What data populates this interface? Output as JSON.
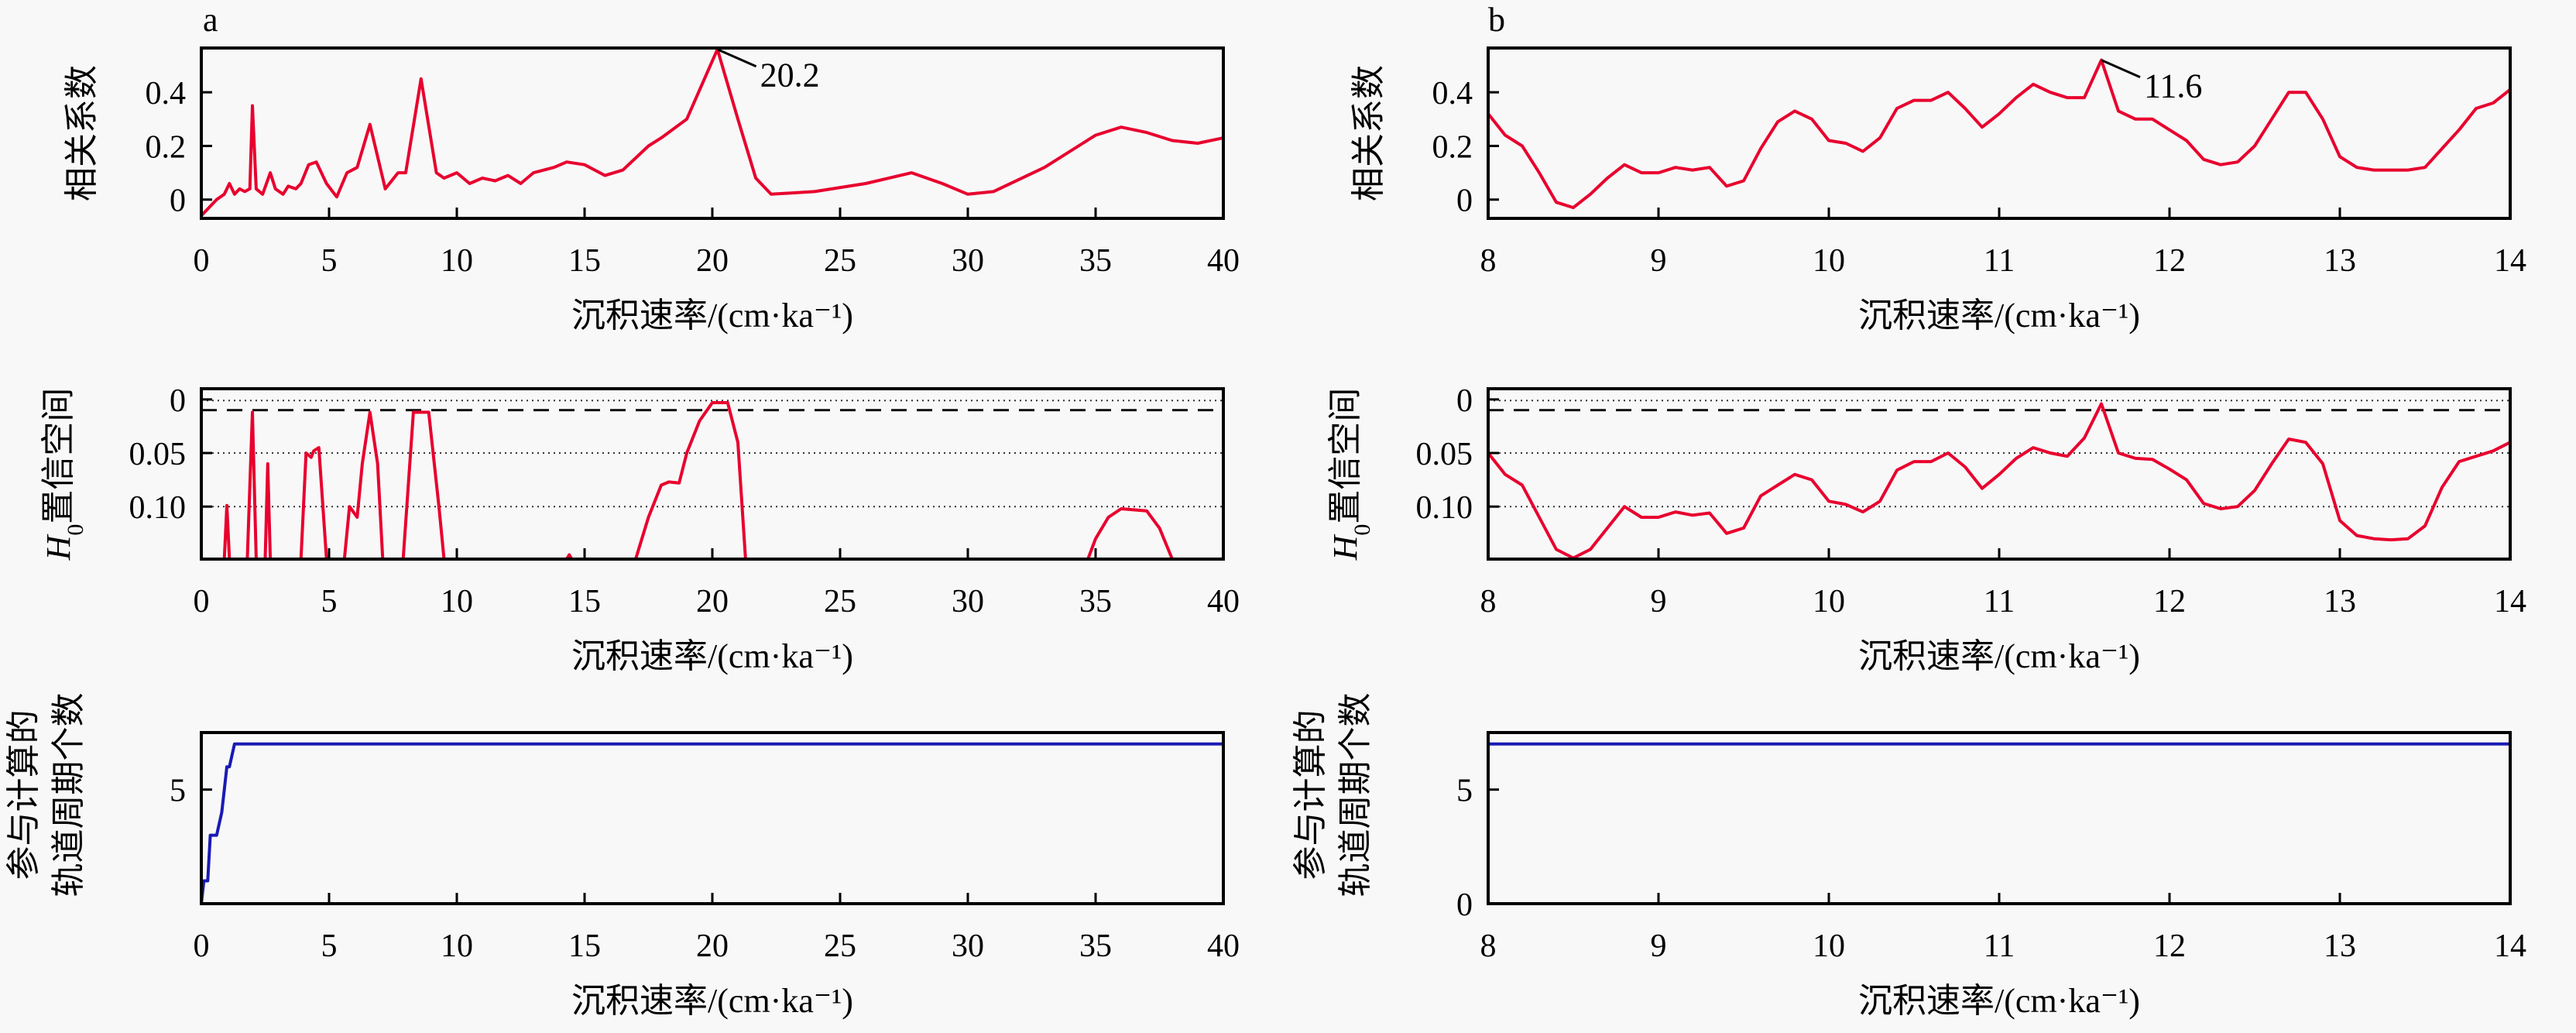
{
  "figure": {
    "panels": [
      {
        "letter": "a"
      },
      {
        "letter": "b"
      }
    ]
  },
  "chart_data": [
    {
      "id": "a-corr",
      "panel": "a",
      "type": "line",
      "title": "",
      "xlabel": "沉积速率/(cm·ka⁻¹)",
      "ylabel": "相关系数",
      "xlim": [
        0,
        40
      ],
      "ylim": [
        -0.07,
        0.565
      ],
      "xticks": [
        0,
        5,
        10,
        15,
        20,
        25,
        30,
        35,
        40
      ],
      "xtick_labels": [
        "0",
        "5",
        "10",
        "15",
        "20",
        "25",
        "30",
        "35",
        "40"
      ],
      "yticks": [
        0,
        0.2,
        0.4
      ],
      "ytick_labels": [
        "0",
        "0.2",
        "0.4"
      ],
      "grid": false,
      "annotations": [
        {
          "x": 20.2,
          "y": 0.56,
          "text": "20.2"
        }
      ],
      "series": [
        {
          "name": "correlation",
          "color": "#e8002e",
          "x": [
            0,
            0.3,
            0.6,
            0.9,
            1.1,
            1.3,
            1.5,
            1.7,
            1.9,
            2.0,
            2.15,
            2.4,
            2.7,
            2.9,
            3.2,
            3.4,
            3.7,
            3.9,
            4.2,
            4.5,
            4.9,
            5.3,
            5.7,
            6.1,
            6.6,
            7.2,
            7.7,
            8.0,
            8.6,
            9.2,
            9.5,
            10.0,
            10.5,
            11.0,
            11.5,
            12.0,
            12.5,
            13.0,
            13.8,
            14.3,
            15.0,
            15.8,
            16.5,
            17.5,
            18.0,
            19.0,
            20.2,
            21.0,
            21.7,
            22.3,
            24.0,
            26.0,
            27.8,
            29.0,
            30.0,
            31.0,
            33.0,
            35.0,
            36.0,
            37.0,
            38.0,
            39.0,
            40.0
          ],
          "y": [
            -0.06,
            -0.03,
            0.0,
            0.02,
            0.06,
            0.02,
            0.04,
            0.03,
            0.04,
            0.35,
            0.04,
            0.02,
            0.1,
            0.04,
            0.02,
            0.05,
            0.04,
            0.06,
            0.13,
            0.14,
            0.06,
            0.01,
            0.1,
            0.12,
            0.28,
            0.04,
            0.1,
            0.1,
            0.45,
            0.1,
            0.08,
            0.1,
            0.06,
            0.08,
            0.07,
            0.09,
            0.06,
            0.1,
            0.12,
            0.14,
            0.13,
            0.09,
            0.11,
            0.2,
            0.23,
            0.3,
            0.56,
            0.3,
            0.08,
            0.02,
            0.03,
            0.06,
            0.1,
            0.06,
            0.02,
            0.03,
            0.12,
            0.24,
            0.27,
            0.25,
            0.22,
            0.21,
            0.23
          ]
        }
      ]
    },
    {
      "id": "b-corr",
      "panel": "b",
      "type": "line",
      "title": "",
      "xlabel": "沉积速率/(cm·ka⁻¹)",
      "ylabel": "相关系数",
      "xlim": [
        8,
        14
      ],
      "ylim": [
        -0.07,
        0.565
      ],
      "xticks": [
        8,
        9,
        10,
        11,
        12,
        13,
        14
      ],
      "xtick_labels": [
        "8",
        "9",
        "10",
        "11",
        "12",
        "13",
        "14"
      ],
      "yticks": [
        0,
        0.2,
        0.4
      ],
      "ytick_labels": [
        "0",
        "0.2",
        "0.4"
      ],
      "grid": false,
      "annotations": [
        {
          "x": 11.6,
          "y": 0.52,
          "text": "11.6"
        }
      ],
      "series": [
        {
          "name": "correlation",
          "color": "#e8002e",
          "x": [
            8.0,
            8.1,
            8.2,
            8.3,
            8.4,
            8.5,
            8.6,
            8.7,
            8.8,
            8.9,
            9.0,
            9.1,
            9.2,
            9.3,
            9.4,
            9.5,
            9.6,
            9.7,
            9.8,
            9.9,
            10.0,
            10.1,
            10.2,
            10.3,
            10.4,
            10.5,
            10.6,
            10.7,
            10.8,
            10.9,
            11.0,
            11.1,
            11.2,
            11.3,
            11.4,
            11.5,
            11.6,
            11.7,
            11.8,
            11.9,
            12.0,
            12.1,
            12.2,
            12.3,
            12.4,
            12.5,
            12.6,
            12.7,
            12.8,
            12.9,
            13.0,
            13.1,
            13.2,
            13.3,
            13.4,
            13.5,
            13.6,
            13.7,
            13.8,
            13.9,
            14.0
          ],
          "y": [
            0.32,
            0.24,
            0.2,
            0.1,
            -0.01,
            -0.03,
            0.02,
            0.08,
            0.13,
            0.1,
            0.1,
            0.12,
            0.11,
            0.12,
            0.05,
            0.07,
            0.19,
            0.29,
            0.33,
            0.3,
            0.22,
            0.21,
            0.18,
            0.23,
            0.34,
            0.37,
            0.37,
            0.4,
            0.34,
            0.27,
            0.32,
            0.38,
            0.43,
            0.4,
            0.38,
            0.38,
            0.52,
            0.33,
            0.3,
            0.3,
            0.26,
            0.22,
            0.15,
            0.13,
            0.14,
            0.2,
            0.3,
            0.4,
            0.4,
            0.3,
            0.16,
            0.12,
            0.11,
            0.11,
            0.11,
            0.12,
            0.19,
            0.26,
            0.34,
            0.36,
            0.41
          ]
        }
      ]
    },
    {
      "id": "a-h0",
      "panel": "a",
      "type": "line",
      "title": "",
      "xlabel": "沉积速率/(cm·ka⁻¹)",
      "ylabel_main": "H",
      "ylabel_sub": "0",
      "ylabel_rest": "置信空间",
      "xlim": [
        0,
        40
      ],
      "ylim": [
        0.149,
        -0.01
      ],
      "y_inverted": true,
      "xticks": [
        0,
        5,
        10,
        15,
        20,
        25,
        30,
        35,
        40
      ],
      "xtick_labels": [
        "0",
        "5",
        "10",
        "15",
        "20",
        "25",
        "30",
        "35",
        "40"
      ],
      "yticks": [
        0,
        0.05,
        0.1
      ],
      "ytick_labels": [
        "0",
        "0.05",
        "0.10"
      ],
      "dotted_reference_lines": [
        0.001,
        0.05,
        0.1
      ],
      "dashed_reference_lines": [
        0.01
      ],
      "grid": false,
      "series": [
        {
          "name": "H0 significance",
          "color": "#e8002e",
          "x": [
            0,
            0.9,
            1.0,
            1.1,
            1.8,
            2.0,
            2.15,
            2.5,
            2.6,
            2.7,
            3.9,
            4.1,
            4.3,
            4.4,
            4.6,
            4.9,
            5.0,
            5.6,
            5.8,
            6.1,
            6.3,
            6.6,
            6.9,
            7.1,
            7.9,
            8.3,
            8.9,
            9.3,
            9.5,
            14.3,
            14.4,
            14.5,
            17.0,
            17.5,
            18.0,
            18.3,
            18.7,
            19.0,
            19.5,
            20.0,
            20.6,
            21.0,
            21.3,
            34.7,
            35.0,
            35.5,
            36.0,
            37.0,
            37.5,
            38.0,
            40.0
          ],
          "y": [
            0.149,
            0.149,
            0.099,
            0.149,
            0.149,
            0.012,
            0.149,
            0.149,
            0.06,
            0.149,
            0.149,
            0.05,
            0.054,
            0.048,
            0.045,
            0.149,
            0.149,
            0.149,
            0.1,
            0.11,
            0.06,
            0.012,
            0.06,
            0.149,
            0.149,
            0.012,
            0.012,
            0.1,
            0.149,
            0.149,
            0.145,
            0.149,
            0.149,
            0.11,
            0.08,
            0.077,
            0.078,
            0.05,
            0.02,
            0.003,
            0.003,
            0.04,
            0.149,
            0.149,
            0.13,
            0.11,
            0.102,
            0.104,
            0.12,
            0.149,
            0.149
          ]
        }
      ]
    },
    {
      "id": "b-h0",
      "panel": "b",
      "type": "line",
      "title": "",
      "xlabel": "沉积速率/(cm·ka⁻¹)",
      "ylabel_main": "H",
      "ylabel_sub": "0",
      "ylabel_rest": "置信空间",
      "xlim": [
        8,
        14
      ],
      "ylim": [
        0.149,
        -0.01
      ],
      "y_inverted": true,
      "xticks": [
        8,
        9,
        10,
        11,
        12,
        13,
        14
      ],
      "xtick_labels": [
        "8",
        "9",
        "10",
        "11",
        "12",
        "13",
        "14"
      ],
      "yticks": [
        0,
        0.05,
        0.1
      ],
      "ytick_labels": [
        "0",
        "0.05",
        "0.10"
      ],
      "dotted_reference_lines": [
        0.001,
        0.05,
        0.1
      ],
      "dashed_reference_lines": [
        0.01
      ],
      "grid": false,
      "series": [
        {
          "name": "H0 significance",
          "color": "#e8002e",
          "x": [
            8.0,
            8.1,
            8.2,
            8.3,
            8.4,
            8.5,
            8.6,
            8.7,
            8.8,
            8.9,
            9.0,
            9.1,
            9.2,
            9.3,
            9.4,
            9.5,
            9.6,
            9.7,
            9.8,
            9.9,
            10.0,
            10.1,
            10.2,
            10.3,
            10.4,
            10.5,
            10.6,
            10.7,
            10.8,
            10.9,
            11.0,
            11.1,
            11.2,
            11.3,
            11.4,
            11.5,
            11.6,
            11.7,
            11.8,
            11.9,
            12.0,
            12.1,
            12.2,
            12.3,
            12.4,
            12.5,
            12.6,
            12.7,
            12.8,
            12.9,
            13.0,
            13.1,
            13.2,
            13.3,
            13.4,
            13.5,
            13.6,
            13.7,
            13.8,
            13.9,
            14.0
          ],
          "y": [
            0.05,
            0.07,
            0.08,
            0.11,
            0.14,
            0.148,
            0.14,
            0.12,
            0.1,
            0.11,
            0.11,
            0.105,
            0.108,
            0.106,
            0.125,
            0.12,
            0.09,
            0.08,
            0.07,
            0.075,
            0.095,
            0.098,
            0.105,
            0.095,
            0.066,
            0.058,
            0.058,
            0.05,
            0.063,
            0.083,
            0.07,
            0.055,
            0.045,
            0.05,
            0.053,
            0.036,
            0.004,
            0.05,
            0.055,
            0.056,
            0.065,
            0.075,
            0.097,
            0.102,
            0.1,
            0.085,
            0.06,
            0.037,
            0.04,
            0.06,
            0.113,
            0.127,
            0.13,
            0.131,
            0.13,
            0.118,
            0.082,
            0.058,
            0.053,
            0.048,
            0.04
          ]
        }
      ]
    },
    {
      "id": "a-count",
      "panel": "a",
      "type": "line",
      "title": "",
      "xlabel": "沉积速率/(cm·ka⁻¹)",
      "ylabel_lines": [
        "参与计算的",
        "轨道周期个数"
      ],
      "xlim": [
        0,
        40
      ],
      "ylim": [
        0,
        7.5
      ],
      "xticks": [
        0,
        5,
        10,
        15,
        20,
        25,
        30,
        35,
        40
      ],
      "xtick_labels": [
        "0",
        "5",
        "10",
        "15",
        "20",
        "25",
        "30",
        "35",
        "40"
      ],
      "yticks": [
        5
      ],
      "ytick_labels": [
        "5"
      ],
      "grid": false,
      "series": [
        {
          "name": "orbital period count",
          "color": "#1a1ab4",
          "x": [
            0,
            0.1,
            0.25,
            0.35,
            0.6,
            0.8,
            1.0,
            1.1,
            1.3,
            1.4,
            40
          ],
          "y": [
            0,
            1,
            1,
            3,
            3,
            4,
            6,
            6,
            7,
            7,
            7
          ]
        }
      ]
    },
    {
      "id": "b-count",
      "panel": "b",
      "type": "line",
      "title": "",
      "xlabel": "沉积速率/(cm·ka⁻¹)",
      "ylabel_lines": [
        "参与计算的",
        "轨道周期个数"
      ],
      "xlim": [
        8,
        14
      ],
      "ylim": [
        0,
        7.5
      ],
      "xticks": [
        8,
        9,
        10,
        11,
        12,
        13,
        14
      ],
      "xtick_labels": [
        "8",
        "9",
        "10",
        "11",
        "12",
        "13",
        "14"
      ],
      "yticks": [
        0,
        5
      ],
      "ytick_labels": [
        "0",
        "5"
      ],
      "grid": false,
      "series": [
        {
          "name": "orbital period count",
          "color": "#1a1ab4",
          "x": [
            8,
            14
          ],
          "y": [
            7,
            7
          ]
        }
      ]
    }
  ]
}
